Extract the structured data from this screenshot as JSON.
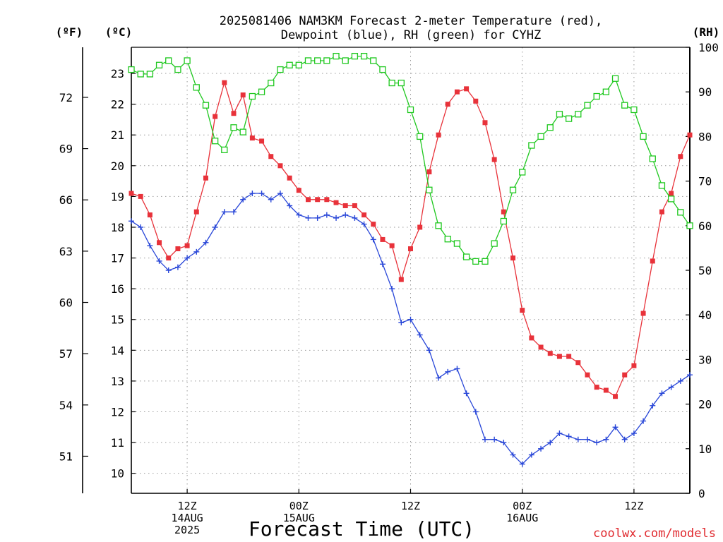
{
  "chart_data": {
    "type": "line",
    "title_line1": "2025081406 NAM3KM Forecast 2-meter Temperature (red),",
    "title_line2": "Dewpoint (blue), RH (green) for CYHZ",
    "xlabel": "Forecast Time (UTC)",
    "credit": "coolwx.com/models",
    "units": {
      "fahrenheit": "(ºF)",
      "celsius": "(ºC)",
      "rh": "(RH)"
    },
    "ylim_c": [
      9.35,
      23.85
    ],
    "ylim_f": [
      48.83,
      74.93
    ],
    "ylim_rh": [
      0,
      100
    ],
    "yticks_c": [
      10,
      11,
      12,
      13,
      14,
      15,
      16,
      17,
      18,
      19,
      20,
      21,
      22,
      23
    ],
    "yticks_f": [
      51,
      54,
      57,
      60,
      63,
      66,
      69,
      72
    ],
    "yticks_rh": [
      0,
      10,
      20,
      30,
      40,
      50,
      60,
      70,
      80,
      90,
      100
    ],
    "x_hours": [
      6,
      66
    ],
    "x_ticks": [
      {
        "hour": 12,
        "lines": [
          "12Z",
          "14AUG",
          "2025"
        ]
      },
      {
        "hour": 24,
        "lines": [
          "00Z",
          "15AUG"
        ]
      },
      {
        "hour": 36,
        "lines": [
          "12Z"
        ]
      },
      {
        "hour": 48,
        "lines": [
          "00Z",
          "16AUG"
        ]
      },
      {
        "hour": 60,
        "lines": [
          "12Z"
        ]
      }
    ],
    "grid": true,
    "colors": {
      "temperature": "#e8323a",
      "dewpoint": "#2846d8",
      "rh": "#1fc81f",
      "frame": "#000000",
      "grid": "#9a9a9a"
    },
    "x": [
      6,
      7,
      8,
      9,
      10,
      11,
      12,
      13,
      14,
      15,
      16,
      17,
      18,
      19,
      20,
      21,
      22,
      23,
      24,
      25,
      26,
      27,
      28,
      29,
      30,
      31,
      32,
      33,
      34,
      35,
      36,
      37,
      38,
      39,
      40,
      41,
      42,
      43,
      44,
      45,
      46,
      47,
      48,
      49,
      50,
      51,
      52,
      53,
      54,
      55,
      56,
      57,
      58,
      59,
      60,
      61,
      62,
      63,
      64,
      65,
      66
    ],
    "series": [
      {
        "key": "temperature",
        "values": [
          19.1,
          19.0,
          18.4,
          17.5,
          17.0,
          17.3,
          17.4,
          18.5,
          19.6,
          21.6,
          22.7,
          21.7,
          22.3,
          20.9,
          20.8,
          20.3,
          20.0,
          19.6,
          19.2,
          18.9,
          18.9,
          18.9,
          18.8,
          18.7,
          18.7,
          18.4,
          18.1,
          17.6,
          17.4,
          16.3,
          17.3,
          18.0,
          19.8,
          21.0,
          22.0,
          22.4,
          22.5,
          22.1,
          21.4,
          20.2,
          18.5,
          17.0,
          15.3,
          14.4,
          14.1,
          13.9,
          13.8,
          13.8,
          13.6,
          13.2,
          12.8,
          12.7,
          12.5,
          13.2,
          13.5,
          15.2,
          16.9,
          18.5,
          19.1,
          20.3,
          21.0
        ]
      },
      {
        "key": "dewpoint",
        "values": [
          18.2,
          18.0,
          17.4,
          16.9,
          16.6,
          16.7,
          17.0,
          17.2,
          17.5,
          18.0,
          18.5,
          18.5,
          18.9,
          19.1,
          19.1,
          18.9,
          19.1,
          18.7,
          18.4,
          18.3,
          18.3,
          18.4,
          18.3,
          18.4,
          18.3,
          18.1,
          17.6,
          16.8,
          16.0,
          14.9,
          15.0,
          14.5,
          14.0,
          13.1,
          13.3,
          13.4,
          12.6,
          12.0,
          11.1,
          11.1,
          11.0,
          10.6,
          10.3,
          10.6,
          10.8,
          11.0,
          11.3,
          11.2,
          11.1,
          11.1,
          11.0,
          11.1,
          11.5,
          11.1,
          11.3,
          11.7,
          12.2,
          12.6,
          12.8,
          13.0,
          13.2
        ]
      },
      {
        "key": "rh",
        "values": [
          95,
          94,
          94,
          96,
          97,
          95,
          97,
          91,
          87,
          79,
          77,
          82,
          81,
          89,
          90,
          92,
          95,
          96,
          96,
          97,
          97,
          97,
          98,
          97,
          98,
          98,
          97,
          95,
          92,
          92,
          86,
          80,
          68,
          60,
          57,
          56,
          53,
          52,
          52,
          56,
          61,
          68,
          72,
          78,
          80,
          82,
          85,
          84,
          85,
          87,
          89,
          90,
          93,
          87,
          86,
          80,
          75,
          69,
          66,
          63,
          60
        ]
      }
    ]
  }
}
